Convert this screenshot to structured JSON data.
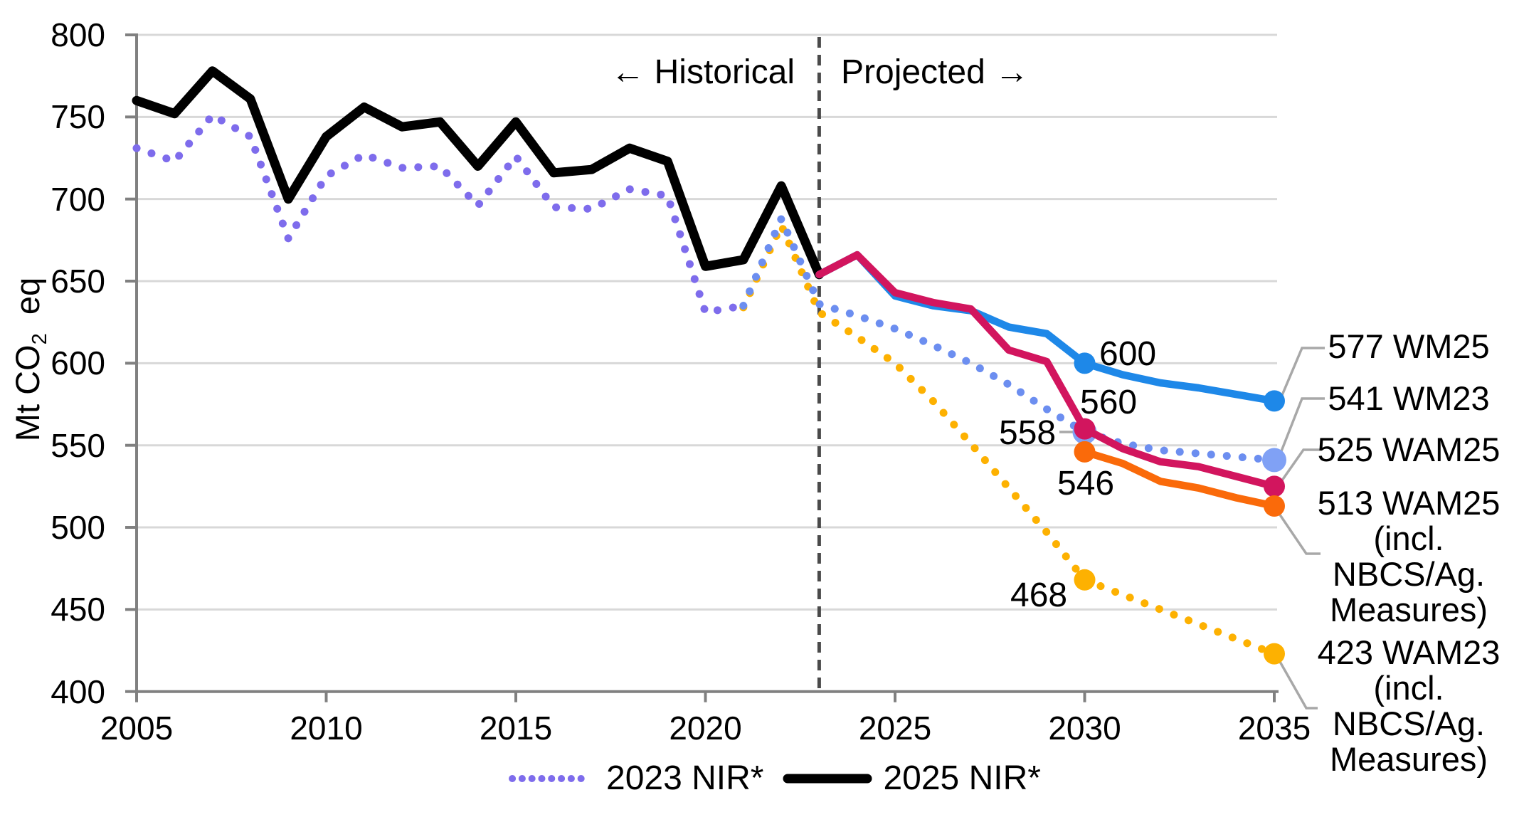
{
  "chart_data": {
    "type": "line",
    "title": "",
    "ylabel": {
      "prefix": "Mt CO",
      "sub": "2",
      "suffix": "  eq"
    },
    "y_axis": {
      "min": 400,
      "max": 800,
      "step": 50,
      "ticks": [
        800,
        750,
        700,
        650,
        600,
        550,
        500,
        450,
        400
      ]
    },
    "x_axis": {
      "min": 2005,
      "max": 2035,
      "ticks": [
        "2005",
        "2010",
        "2015",
        "2020",
        "2025",
        "2030",
        "2035"
      ]
    },
    "divider": {
      "year": 2023,
      "left_label": "← Historical",
      "right_label": "Projected →"
    },
    "grid": "horizontal",
    "series": [
      {
        "id": "nir2023",
        "name": "2023 NIR*",
        "color": "#7E6CEC",
        "style": "dotted",
        "width": 11,
        "start_year": 2005,
        "values": [
          731,
          723,
          751,
          738,
          676,
          714,
          727,
          719,
          720,
          696,
          726,
          695,
          694,
          706,
          702,
          631,
          635
        ]
      },
      {
        "id": "wam23",
        "name": "WAM23 (incl. NBCS/Ag. Measures)",
        "color": "#FDB101",
        "style": "dotted",
        "width": 11,
        "start_year": 2021,
        "values": [
          634,
          684,
          631,
          616,
          600,
          577,
          551,
          524,
          497,
          468,
          459,
          450,
          441,
          432,
          423
        ],
        "markers": [
          {
            "year": 2030,
            "value": 468
          },
          {
            "year": 2035,
            "value": 423
          }
        ]
      },
      {
        "id": "wm23",
        "name": "WM23",
        "color": "#6C8EF0",
        "marker_color": "#80A1F5",
        "marker_radius": 17,
        "style": "dotted",
        "width": 11,
        "start_year": 2021,
        "values": [
          635,
          688,
          636,
          629,
          621,
          611,
          600,
          587,
          572,
          558,
          551,
          547,
          545,
          543,
          541
        ],
        "markers": [
          {
            "year": 2030,
            "value": 558
          },
          {
            "year": 2035,
            "value": 541
          }
        ]
      },
      {
        "id": "nir2025",
        "name": "2025 NIR*",
        "color": "#000000",
        "style": "solid",
        "width": 13,
        "start_year": 2005,
        "values": [
          760,
          752,
          778,
          761,
          700,
          738,
          756,
          744,
          747,
          720,
          747,
          716,
          718,
          731,
          723,
          659,
          663,
          708,
          654
        ]
      },
      {
        "id": "wm25",
        "name": "WM25",
        "color": "#1E88E8",
        "style": "solid",
        "width": 10.5,
        "start_year": 2023,
        "values": [
          654,
          666,
          641,
          635,
          632,
          622,
          618,
          600,
          593,
          588,
          585,
          581,
          577
        ],
        "markers": [
          {
            "year": 2030,
            "value": 600
          },
          {
            "year": 2035,
            "value": 577
          }
        ]
      },
      {
        "id": "wam25",
        "name": "WAM25",
        "color": "#D2155E",
        "style": "solid",
        "width": 10.5,
        "start_year": 2023,
        "values": [
          654,
          666,
          643,
          637,
          633,
          608,
          601,
          560,
          548,
          540,
          537,
          531,
          525
        ],
        "markers": [
          {
            "year": 2030,
            "value": 560
          },
          {
            "year": 2035,
            "value": 525
          }
        ]
      },
      {
        "id": "wam25incl",
        "name": "WAM25 (incl. NBCS/Ag. Measures)",
        "color": "#FA6A0A",
        "style": "solid",
        "width": 10.5,
        "start_year": 2030,
        "values": [
          546,
          539,
          528,
          524,
          518,
          513
        ],
        "markers": [
          {
            "year": 2030,
            "value": 546
          },
          {
            "year": 2035,
            "value": 513
          }
        ]
      }
    ],
    "point_labels": [
      {
        "text": "600",
        "series": "WM25",
        "year": 2030
      },
      {
        "text": "560",
        "series": "WAM25",
        "year": 2030
      },
      {
        "text": "558",
        "series": "WM23",
        "year": 2030
      },
      {
        "text": "546",
        "series": "WAM25 (incl. NBCS/Ag. Measures)",
        "year": 2030
      },
      {
        "text": "468",
        "series": "WAM23 (incl. NBCS/Ag. Measures)",
        "year": 2030
      }
    ],
    "end_labels": [
      {
        "text": "577 WM25",
        "value": 577
      },
      {
        "text": "541 WM23",
        "value": 541
      },
      {
        "text": "525 WAM25",
        "value": 525
      },
      {
        "text": "513 WAM25\n(incl.\nNBCS/Ag.\nMeasures)",
        "value": 513
      },
      {
        "text": "423 WAM23\n(incl.\nNBCS/Ag.\nMeasures)",
        "value": 423
      }
    ],
    "legend": [
      {
        "label": "2023 NIR*",
        "style": "dotted",
        "color": "#7E6CEC"
      },
      {
        "label": "2025 NIR*",
        "style": "solid",
        "color": "#000000"
      }
    ],
    "colors": {
      "gridline": "#D8D8D8",
      "axis": "#808080",
      "divider_line": "#4A4A4A",
      "leader_line": "#A8A8A8",
      "background": "#FFFFFF",
      "text": "#000000"
    }
  }
}
